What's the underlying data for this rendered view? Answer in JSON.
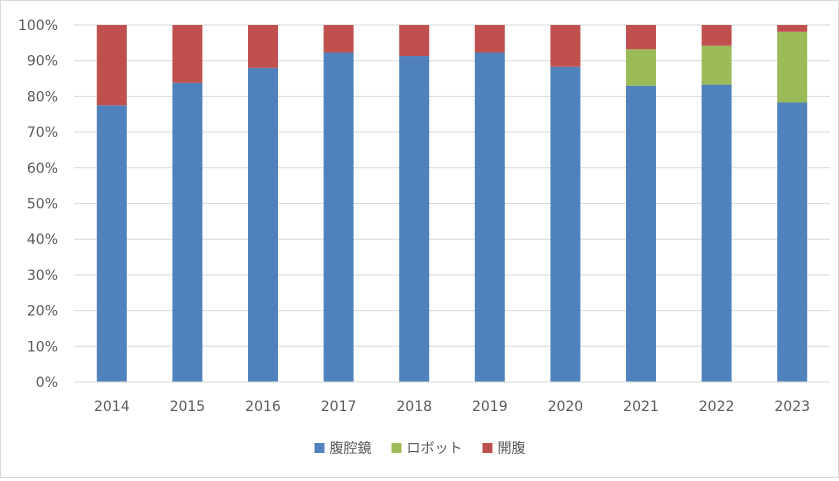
{
  "chart_data": {
    "type": "bar",
    "stacked": true,
    "percent": true,
    "categories": [
      "2014",
      "2015",
      "2016",
      "2017",
      "2018",
      "2019",
      "2020",
      "2021",
      "2022",
      "2023"
    ],
    "series": [
      {
        "name": "腹腔鏡",
        "color": "#4f81bd",
        "values": [
          77.5,
          83.8,
          88.0,
          92.3,
          91.3,
          92.3,
          88.3,
          83.0,
          83.3,
          78.3
        ]
      },
      {
        "name": "ロボット",
        "color": "#9bbb59",
        "values": [
          0,
          0,
          0,
          0,
          0,
          0,
          0,
          10.2,
          10.9,
          19.8
        ]
      },
      {
        "name": "開腹",
        "color": "#c0504d",
        "values": [
          22.5,
          16.2,
          12.0,
          7.7,
          8.7,
          7.7,
          11.7,
          6.8,
          5.8,
          1.9
        ]
      }
    ],
    "y_ticks": [
      "0%",
      "10%",
      "20%",
      "30%",
      "40%",
      "50%",
      "60%",
      "70%",
      "80%",
      "90%",
      "100%"
    ],
    "ylim": [
      0,
      100
    ],
    "grid": true,
    "legend": "bottom",
    "title": "",
    "xlabel": "",
    "ylabel": ""
  }
}
